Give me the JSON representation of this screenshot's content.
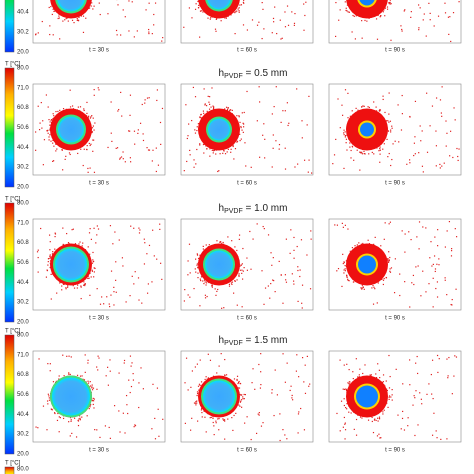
{
  "top_row": {
    "ticks": [
      "40.4",
      "30.2",
      "20.0"
    ],
    "panels": [
      "t = 30 s",
      "t = 60 s",
      "t = 90 s"
    ]
  },
  "rows": [
    {
      "title_symbol": "h",
      "title_subscript": "PVDF",
      "title_value": " = 0.5 mm",
      "unit": "T [°C]",
      "ticks": [
        "80.0",
        "71.0",
        "60.8",
        "50.6",
        "40.4",
        "30.2",
        "20.0"
      ],
      "panels": [
        "t = 30 s",
        "t = 60 s",
        "t = 90 s"
      ]
    },
    {
      "title_symbol": "h",
      "title_subscript": "PVDF",
      "title_value": " = 1.0 mm",
      "unit": "T [°C]",
      "ticks": [
        "80.0",
        "71.0",
        "60.8",
        "50.6",
        "40.4",
        "30.2",
        "20.0"
      ],
      "panels": [
        "t = 30 s",
        "t = 60 s",
        "t = 90 s"
      ]
    },
    {
      "title_symbol": "h",
      "title_subscript": "PVDF",
      "title_value": " = 1.5 mm",
      "unit": "T [°C]",
      "ticks": [
        "80.0",
        "71.0",
        "60.8",
        "50.6",
        "40.4",
        "30.2",
        "20.0"
      ],
      "panels": [
        "t = 30 s",
        "t = 60 s",
        "t = 90 s"
      ]
    }
  ],
  "bottom": {
    "unit": "T [°C]",
    "tick": "80.0"
  }
}
